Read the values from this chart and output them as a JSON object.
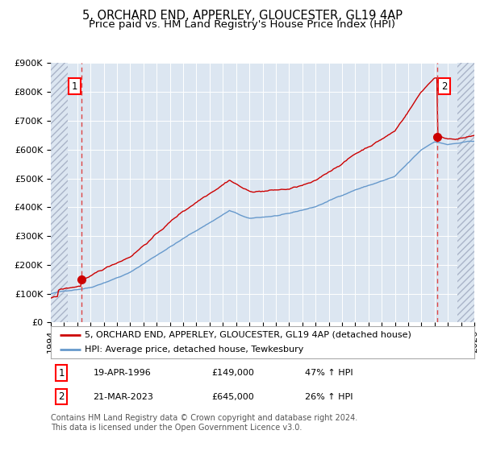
{
  "title1": "5, ORCHARD END, APPERLEY, GLOUCESTER, GL19 4AP",
  "title2": "Price paid vs. HM Land Registry's House Price Index (HPI)",
  "ylim": [
    0,
    900000
  ],
  "yticks": [
    0,
    100000,
    200000,
    300000,
    400000,
    500000,
    600000,
    700000,
    800000,
    900000
  ],
  "ytick_labels": [
    "£0",
    "£100K",
    "£200K",
    "£300K",
    "£400K",
    "£500K",
    "£600K",
    "£700K",
    "£800K",
    "£900K"
  ],
  "x_start_year": 1994,
  "x_end_year": 2026,
  "sale1_date_num": 1996.3,
  "sale1_price": 149000,
  "sale2_date_num": 2023.22,
  "sale2_price": 645000,
  "sale1_date_str": "19-APR-1996",
  "sale1_price_str": "£149,000",
  "sale1_hpi_str": "47% ↑ HPI",
  "sale2_date_str": "21-MAR-2023",
  "sale2_price_str": "£645,000",
  "sale2_hpi_str": "26% ↑ HPI",
  "hpi_line_color": "#6699cc",
  "price_line_color": "#cc0000",
  "sale_marker_color": "#cc0000",
  "dashed_line_color": "#dd4444",
  "legend_label1": "5, ORCHARD END, APPERLEY, GLOUCESTER, GL19 4AP (detached house)",
  "legend_label2": "HPI: Average price, detached house, Tewkesbury",
  "plot_bg_color": "#dce6f1",
  "hatch_color": "#aab4c8",
  "footnote": "Contains HM Land Registry data © Crown copyright and database right 2024.\nThis data is licensed under the Open Government Licence v3.0.",
  "grid_color": "#ffffff",
  "title_fontsize": 10.5,
  "subtitle_fontsize": 9.5,
  "tick_fontsize": 8,
  "legend_fontsize": 8,
  "footnote_fontsize": 7
}
